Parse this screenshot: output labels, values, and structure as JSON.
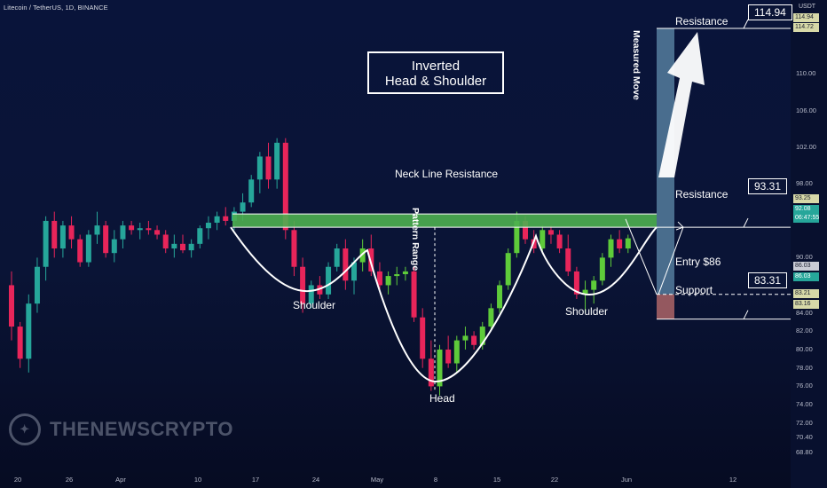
{
  "header": {
    "symbol_line": "Litecoin / TetherUS, 1D, BINANCE",
    "currency": "USDT"
  },
  "title_lines": [
    "Inverted",
    "Head & Shoulder"
  ],
  "watermark": "THENEWSCRYPTO",
  "annotations": {
    "neckline": "Neck Line Resistance",
    "pattern_range": "Pattern Range",
    "measured_move": "Measured Move",
    "shoulder_left": "Shoulder",
    "shoulder_right": "Shoulder",
    "head": "Head",
    "resistance_top": "Resistance",
    "resistance_mid": "Resistance",
    "entry": "Entry $86",
    "support": "Support",
    "callout_top": "114.94",
    "callout_mid": "93.31",
    "callout_bottom": "83.31"
  },
  "colors": {
    "up": "#26a69a",
    "up_bright": "#5ecb3a",
    "down": "#e8255a",
    "neck": "#4caf50",
    "background": "#0a1436"
  },
  "chart_data": {
    "type": "candlestick",
    "title": "Inverted Head & Shoulder",
    "ylim": [
      67,
      116
    ],
    "y_ticks": [
      "68.80",
      "70.40",
      "72.00",
      "74.00",
      "76.00",
      "78.00",
      "80.00",
      "82.00",
      "84.00",
      "86.03",
      "88.00",
      "90.00",
      "92.08",
      "94.00",
      "98.00",
      "102.00",
      "106.00",
      "110.00",
      "114.72",
      "114.94"
    ],
    "x_ticks": [
      "20",
      "26",
      "Apr",
      "10",
      "17",
      "24",
      "May",
      "8",
      "15",
      "22",
      "Jun",
      "12"
    ],
    "price_badges": [
      {
        "value": "114.94",
        "color": "#d7d9a8"
      },
      {
        "value": "114.72",
        "color": "#d7d9a8"
      },
      {
        "value": "93.25",
        "color": "#d7d9a8"
      },
      {
        "value": "92.08",
        "color": "#26a69a"
      },
      {
        "value": "06:47:55",
        "color": "#26a69a"
      },
      {
        "value": "86.03",
        "color": "#c9cbd4"
      },
      {
        "value": "86.03",
        "color": "#26a69a"
      },
      {
        "value": "83.21",
        "color": "#d7d9a8"
      },
      {
        "value": "83.16",
        "color": "#d7d9a8"
      }
    ],
    "levels": {
      "resistance_top": 114.94,
      "neck_resistance": 93.31,
      "entry": 86,
      "support": 83.31
    },
    "candles": [
      [
        87.0,
        88.5,
        81.0,
        82.5
      ],
      [
        82.5,
        83.0,
        78.0,
        79.0
      ],
      [
        79.0,
        86.0,
        77.5,
        85.0
      ],
      [
        85.0,
        90.0,
        84.0,
        89.0
      ],
      [
        89.0,
        94.5,
        87.5,
        94.0
      ],
      [
        94.0,
        95.0,
        90.0,
        91.0
      ],
      [
        91.0,
        94.0,
        90.0,
        93.5
      ],
      [
        93.5,
        94.5,
        91.0,
        92.0
      ],
      [
        92.0,
        92.5,
        89.0,
        89.5
      ],
      [
        89.5,
        93.0,
        89.0,
        92.5
      ],
      [
        92.5,
        95.0,
        91.5,
        93.5
      ],
      [
        93.5,
        94.0,
        90.0,
        90.5
      ],
      [
        90.5,
        93.0,
        89.5,
        92.0
      ],
      [
        92.0,
        94.0,
        91.0,
        93.5
      ],
      [
        93.5,
        94.0,
        92.5,
        93.0
      ],
      [
        93.0,
        93.8,
        92.0,
        93.2
      ],
      [
        93.2,
        94.0,
        92.5,
        93.0
      ],
      [
        93.0,
        93.5,
        92.0,
        92.5
      ],
      [
        92.5,
        93.0,
        90.5,
        91.0
      ],
      [
        91.0,
        92.5,
        90.0,
        91.5
      ],
      [
        91.5,
        92.5,
        90.5,
        90.8
      ],
      [
        90.8,
        92.0,
        90.0,
        91.5
      ],
      [
        91.5,
        93.5,
        91.0,
        93.2
      ],
      [
        93.2,
        94.5,
        92.0,
        93.8
      ],
      [
        93.8,
        95.0,
        93.0,
        94.5
      ],
      [
        94.5,
        95.5,
        93.5,
        94.0
      ],
      [
        94.0,
        95.5,
        93.0,
        95.0
      ],
      [
        95.0,
        97.0,
        94.0,
        96.0
      ],
      [
        96.0,
        99.0,
        95.5,
        98.5
      ],
      [
        98.5,
        101.5,
        97.0,
        101.0
      ],
      [
        101.0,
        102.5,
        97.5,
        98.5
      ],
      [
        98.5,
        103.0,
        97.5,
        102.5
      ],
      [
        102.5,
        103.0,
        92.0,
        93.0
      ],
      [
        93.0,
        94.0,
        88.0,
        89.0
      ],
      [
        89.0,
        90.0,
        84.0,
        85.0
      ],
      [
        85.0,
        87.5,
        84.5,
        87.0
      ],
      [
        87.0,
        88.0,
        85.5,
        86.0
      ],
      [
        86.0,
        89.5,
        85.5,
        89.0
      ],
      [
        89.0,
        91.5,
        88.5,
        91.0
      ],
      [
        91.0,
        92.0,
        86.5,
        87.5
      ],
      [
        87.5,
        90.0,
        86.0,
        89.5
      ],
      [
        89.5,
        92.0,
        88.5,
        91.0
      ],
      [
        91.0,
        92.5,
        88.0,
        88.5
      ],
      [
        88.5,
        89.5,
        86.5,
        87.0
      ],
      [
        87.0,
        88.5,
        86.0,
        88.0
      ],
      [
        88.0,
        89.0,
        87.0,
        88.2
      ],
      [
        88.2,
        89.0,
        87.5,
        88.5
      ],
      [
        88.5,
        89.0,
        83.0,
        83.5
      ],
      [
        83.5,
        84.5,
        78.0,
        79.0
      ],
      [
        79.0,
        81.0,
        75.5,
        76.0
      ],
      [
        76.0,
        80.5,
        75.0,
        80.0
      ],
      [
        80.0,
        81.5,
        78.0,
        78.5
      ],
      [
        78.5,
        81.5,
        77.5,
        81.0
      ],
      [
        81.0,
        82.5,
        80.0,
        81.5
      ],
      [
        81.5,
        82.0,
        80.0,
        80.5
      ],
      [
        80.5,
        83.0,
        80.0,
        82.5
      ],
      [
        82.5,
        85.0,
        82.0,
        84.5
      ],
      [
        84.5,
        87.5,
        84.0,
        87.0
      ],
      [
        87.0,
        91.0,
        86.5,
        90.5
      ],
      [
        90.5,
        95.0,
        90.0,
        94.0
      ],
      [
        94.0,
        94.5,
        91.5,
        92.0
      ],
      [
        92.0,
        93.0,
        90.5,
        91.0
      ],
      [
        91.0,
        93.5,
        90.5,
        93.0
      ],
      [
        93.0,
        93.5,
        91.5,
        92.5
      ],
      [
        92.5,
        93.0,
        90.5,
        91.0
      ],
      [
        91.0,
        92.5,
        88.0,
        88.5
      ],
      [
        88.5,
        89.0,
        85.5,
        86.0
      ],
      [
        86.0,
        87.5,
        84.0,
        86.5
      ],
      [
        86.5,
        88.0,
        85.0,
        87.5
      ],
      [
        87.5,
        90.5,
        87.0,
        90.0
      ],
      [
        90.0,
        92.5,
        89.0,
        92.0
      ],
      [
        92.0,
        93.0,
        90.5,
        91.0
      ],
      [
        91.0,
        92.5,
        90.5,
        92.1
      ]
    ]
  }
}
